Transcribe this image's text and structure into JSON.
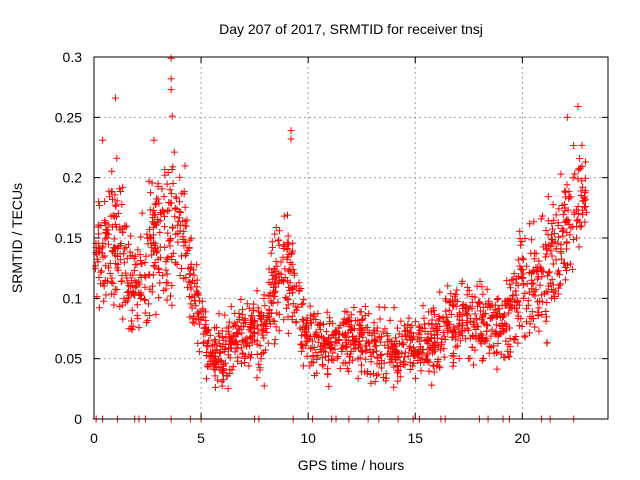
{
  "chart_data": {
    "type": "scatter",
    "title": "Day 207 of 2017, SRMTID for receiver tnsj",
    "xlabel": "GPS time / hours",
    "ylabel": "SRMTID / TECUs",
    "xlim": [
      0,
      24
    ],
    "ylim": [
      0,
      0.3
    ],
    "xticks": [
      0,
      5,
      10,
      15,
      20
    ],
    "xtick_labels": [
      "0",
      "5",
      "10",
      "15",
      "20"
    ],
    "yticks": [
      0,
      0.05,
      0.1,
      0.15,
      0.2,
      0.25,
      0.3
    ],
    "ytick_labels": [
      "0",
      "0.05",
      "0.1",
      "0.15",
      "0.2",
      "0.25",
      "0.3"
    ],
    "grid": true,
    "marker": "+",
    "series": [
      {
        "name": "SRMTID",
        "color": "#ff0000",
        "envelope_hours": [
          0.0,
          1.0,
          1.5,
          2.0,
          2.5,
          3.0,
          3.5,
          4.0,
          4.5,
          5.0,
          5.5,
          6.0,
          7.0,
          8.0,
          8.5,
          9.0,
          9.5,
          10.0,
          11.0,
          12.0,
          13.0,
          14.0,
          15.0,
          16.0,
          16.5,
          17.0,
          18.0,
          19.0,
          19.5,
          20.0,
          21.0,
          21.5,
          22.0,
          22.5,
          23.0
        ],
        "envelope_centers": [
          0.14,
          0.15,
          0.12,
          0.11,
          0.14,
          0.15,
          0.16,
          0.17,
          0.12,
          0.08,
          0.05,
          0.055,
          0.07,
          0.07,
          0.12,
          0.13,
          0.09,
          0.07,
          0.06,
          0.07,
          0.06,
          0.06,
          0.06,
          0.065,
          0.075,
          0.08,
          0.08,
          0.075,
          0.09,
          0.11,
          0.12,
          0.14,
          0.16,
          0.18,
          0.19
        ],
        "envelope_spreads": [
          0.04,
          0.05,
          0.04,
          0.04,
          0.05,
          0.05,
          0.06,
          0.05,
          0.04,
          0.03,
          0.02,
          0.025,
          0.025,
          0.03,
          0.05,
          0.05,
          0.03,
          0.025,
          0.025,
          0.025,
          0.025,
          0.025,
          0.025,
          0.025,
          0.03,
          0.03,
          0.03,
          0.025,
          0.035,
          0.04,
          0.045,
          0.05,
          0.05,
          0.04,
          0.04
        ],
        "peaks": [
          {
            "x": 1.0,
            "y": 0.266
          },
          {
            "x": 3.6,
            "y": 0.299
          },
          {
            "x": 3.6,
            "y": 0.282
          },
          {
            "x": 3.6,
            "y": 0.273
          },
          {
            "x": 3.65,
            "y": 0.251
          },
          {
            "x": 9.2,
            "y": 0.239
          },
          {
            "x": 9.2,
            "y": 0.232
          },
          {
            "x": 22.1,
            "y": 0.25
          },
          {
            "x": 22.6,
            "y": 0.259
          },
          {
            "x": 2.8,
            "y": 0.231
          },
          {
            "x": 0.4,
            "y": 0.231
          }
        ],
        "zero_points_hours": [
          0.1,
          0.4,
          1.1,
          1.9,
          2.1,
          2.4,
          3.6,
          4.5,
          5.0,
          7.5,
          7.7,
          9.3,
          10.2,
          11.1,
          11.3,
          11.9,
          12.8,
          13.3,
          14.2,
          14.9,
          15.2,
          16.2,
          16.4,
          18.0,
          18.4,
          19.1,
          19.4,
          20.9,
          21.3,
          22.4
        ]
      }
    ]
  }
}
